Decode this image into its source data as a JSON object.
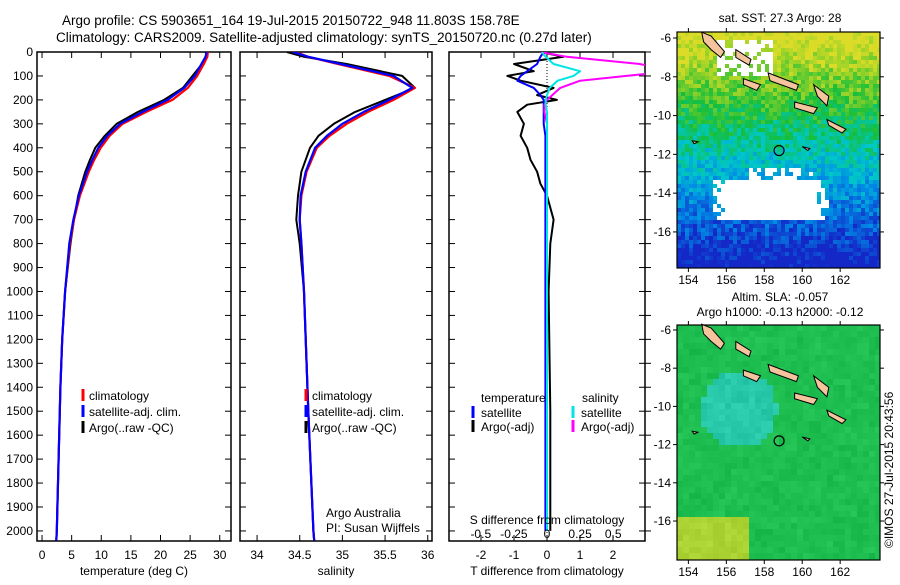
{
  "title_line1": "Argo profile: CS 5903651_164 19-Jul-2015 20150722_948 11.803S 158.78E",
  "title_line2": "Climatology: CARS2009. Satellite-adjusted climatology: synTS_20150720.nc (0.27d later)",
  "credit": "©IMOS 27-Jul-2015 20:43:56",
  "colors": {
    "climatology": "#ff0000",
    "satellite": "#0000ff",
    "argo": "#000000",
    "sal_satellite": "#00e5e5",
    "sal_argo": "#ff00ff"
  },
  "chart_data": [
    {
      "type": "line",
      "name": "temperature",
      "xlabel": "temperature (deg C)",
      "ylabel": "depth",
      "xlim": [
        -0.85,
        31.9
      ],
      "ylim": [
        2042,
        0
      ],
      "xticks": [
        0,
        5,
        10,
        15,
        20,
        25,
        30
      ],
      "xtick_labels": [
        "0",
        "5",
        "10",
        "15",
        "20",
        "25",
        "30"
      ],
      "yticks": [
        0,
        100,
        200,
        300,
        400,
        500,
        600,
        700,
        800,
        900,
        1000,
        1100,
        1200,
        1300,
        1400,
        1500,
        1600,
        1700,
        1800,
        1900,
        2000
      ],
      "ytick_labels": [
        "0",
        "100",
        "200",
        "300",
        "400",
        "500",
        "600",
        "700",
        "800",
        "900",
        "1000",
        "1100",
        "1200",
        "1300",
        "1400",
        "1500",
        "1600",
        "1700",
        "1800",
        "1900",
        "2000"
      ],
      "legend": [
        "climatology",
        "satellite-adj. clim.",
        "Argo(..raw -QC)"
      ],
      "depth": [
        0,
        20,
        50,
        100,
        150,
        200,
        250,
        300,
        350,
        400,
        450,
        500,
        600,
        700,
        800,
        1000,
        1200,
        1400,
        1600,
        1800,
        2000,
        2040
      ],
      "series": [
        {
          "name": "climatology",
          "values": [
            28,
            27.9,
            27.3,
            26.2,
            24.6,
            22.0,
            17.6,
            13.6,
            11.4,
            9.9,
            8.8,
            7.9,
            6.4,
            5.4,
            4.7,
            3.9,
            3.4,
            3.1,
            2.9,
            2.7,
            2.5,
            2.4
          ]
        },
        {
          "name": "satellite-adj. clim.",
          "values": [
            27.8,
            27.6,
            26.9,
            25.8,
            24.0,
            21.2,
            17.0,
            13.2,
            11.0,
            9.5,
            8.5,
            7.6,
            6.2,
            5.3,
            4.6,
            3.9,
            3.4,
            3.1,
            2.9,
            2.7,
            2.5,
            2.4
          ]
        },
        {
          "name": "Argo(..raw -QC)",
          "values": [
            27.6,
            27.9,
            27.0,
            25.4,
            23.8,
            20.6,
            16.2,
            12.6,
            10.6,
            9.0,
            8.1,
            7.3,
            6.1,
            5.4,
            4.8,
            3.9,
            3.4,
            3.1,
            2.9,
            2.7,
            2.5,
            2.4
          ]
        }
      ]
    },
    {
      "type": "line",
      "name": "salinity",
      "xlabel": "salinity",
      "xlim": [
        33.8,
        36.05
      ],
      "ylim": [
        2042,
        0
      ],
      "xticks": [
        34,
        34.5,
        35,
        35.5,
        36
      ],
      "xtick_labels": [
        "34",
        "34.5",
        "35",
        "35.5",
        "36"
      ],
      "legend": [
        "climatology",
        "satellite-adj. clim.",
        "Argo(..raw -QC)"
      ],
      "annotation": [
        "Argo Australia",
        "PI: Susan Wijffels"
      ],
      "depth": [
        0,
        20,
        50,
        100,
        150,
        200,
        250,
        300,
        350,
        400,
        500,
        600,
        700,
        800,
        1000,
        1500,
        2000,
        2040
      ],
      "series": [
        {
          "name": "climatology",
          "values": [
            34.45,
            34.6,
            34.95,
            35.55,
            35.85,
            35.6,
            35.3,
            35.05,
            34.85,
            34.7,
            34.58,
            34.52,
            34.5,
            34.52,
            34.55,
            34.6,
            34.66,
            34.67
          ]
        },
        {
          "name": "satellite-adj. clim.",
          "values": [
            34.42,
            34.6,
            34.98,
            35.6,
            35.82,
            35.55,
            35.25,
            35.0,
            34.82,
            34.68,
            34.57,
            34.51,
            34.5,
            34.52,
            34.55,
            34.6,
            34.66,
            34.67
          ]
        },
        {
          "name": "Argo(..raw -QC)",
          "values": [
            34.35,
            34.55,
            35.05,
            35.7,
            35.85,
            35.5,
            35.15,
            34.9,
            34.72,
            34.62,
            34.52,
            34.48,
            34.46,
            34.5,
            34.55,
            34.6,
            34.66,
            34.67
          ]
        }
      ]
    },
    {
      "type": "line",
      "name": "difference",
      "xlabel": "T difference from climatology",
      "x2label": "S difference from climatology",
      "xlim": [
        -2.97,
        2.97
      ],
      "x2lim": [
        -0.74,
        0.74
      ],
      "ylim": [
        2042,
        0
      ],
      "xticks": [
        -2,
        -1,
        0,
        1,
        2
      ],
      "xtick_labels": [
        "-2",
        "-1",
        "0",
        "1",
        "2"
      ],
      "x2ticks": [
        -0.5,
        -0.25,
        0,
        0.25,
        0.5
      ],
      "x2tick_labels": [
        "-0.5",
        "-0.25",
        "0",
        "0.25",
        "0.5"
      ],
      "legend_headers": [
        "temperature",
        "salinity"
      ],
      "legend": [
        "satellite",
        "Argo(-adj)",
        "satellite",
        "Argo(-adj)"
      ],
      "depth": [
        0,
        20,
        50,
        80,
        100,
        120,
        150,
        180,
        200,
        220,
        250,
        300,
        350,
        400,
        450,
        500,
        550,
        600,
        700,
        800,
        1000,
        1500,
        2000
      ],
      "series": [
        {
          "name": "temperature satellite",
          "units": "T",
          "values": [
            -0.1,
            -0.2,
            -0.3,
            -0.6,
            -0.8,
            -0.9,
            -0.4,
            -0.2,
            -0.1,
            -0.1,
            -0.1,
            -0.1,
            -0.05,
            -0.05,
            -0.05,
            -0.05,
            -0.05,
            -0.05,
            -0.05,
            -0.05,
            -0.05,
            -0.05,
            -0.05
          ]
        },
        {
          "name": "temperature Argo(-adj)",
          "units": "T",
          "values": [
            -0.2,
            0.5,
            -1.0,
            -0.4,
            -1.2,
            -0.8,
            0.2,
            -0.3,
            0.3,
            -0.6,
            -0.9,
            -0.7,
            -0.8,
            -0.6,
            -0.5,
            -0.3,
            -0.2,
            0.0,
            0.2,
            0.1,
            0.05,
            0.1,
            0.1
          ]
        },
        {
          "name": "salinity satellite",
          "units": "S",
          "values": [
            -0.04,
            -0.01,
            0.05,
            0.25,
            0.2,
            0.08,
            0.02,
            0.0,
            -0.01,
            -0.01,
            0.0,
            0.0,
            0.0,
            0.0,
            0.0,
            0.0,
            0.0,
            0.0,
            0.0,
            0.0,
            0.0,
            0.0,
            0.0
          ]
        },
        {
          "name": "salinity Argo(-adj)",
          "units": "S",
          "values": [
            -0.05,
            0.15,
            0.7,
            0.95,
            0.6,
            0.25,
            0.1,
            0.04,
            0.0,
            -0.02,
            -0.02,
            0.0,
            0.0,
            0.0,
            0.0,
            0.0,
            0.0,
            0.0,
            0.0,
            0.0,
            0.0,
            0.0,
            0.0
          ]
        }
      ]
    },
    {
      "type": "heatmap",
      "name": "sst-map",
      "title": "sat. SST: 27.3 Argo: 28",
      "xlim": [
        153.4,
        164.1
      ],
      "ylim": [
        -17.86,
        -5.69
      ],
      "xticks": [
        154,
        156,
        158,
        160,
        162
      ],
      "xtick_labels": [
        "154",
        "156",
        "158",
        "160",
        "162"
      ],
      "yticks": [
        -6,
        -8,
        -10,
        -12,
        -14,
        -16
      ],
      "ytick_labels": [
        "-6",
        "-8",
        "-10",
        "-12",
        "-14",
        "-16"
      ],
      "argo_position": [
        158.78,
        -11.803
      ]
    },
    {
      "type": "heatmap",
      "name": "sla-map",
      "title": "Altim. SLA: -0.057",
      "subtitle": "Argo h1000: -0.13 h2000: -0.12",
      "xlim": [
        153.4,
        164.1
      ],
      "ylim": [
        -18.04,
        -5.74
      ],
      "xticks": [
        154,
        156,
        158,
        160,
        162
      ],
      "xtick_labels": [
        "154",
        "156",
        "158",
        "160",
        "162"
      ],
      "yticks": [
        -6,
        -8,
        -10,
        -12,
        -14,
        -16
      ],
      "ytick_labels": [
        "-6",
        "-8",
        "-10",
        "-12",
        "-14",
        "-16"
      ],
      "argo_position": [
        158.78,
        -11.803
      ]
    }
  ]
}
